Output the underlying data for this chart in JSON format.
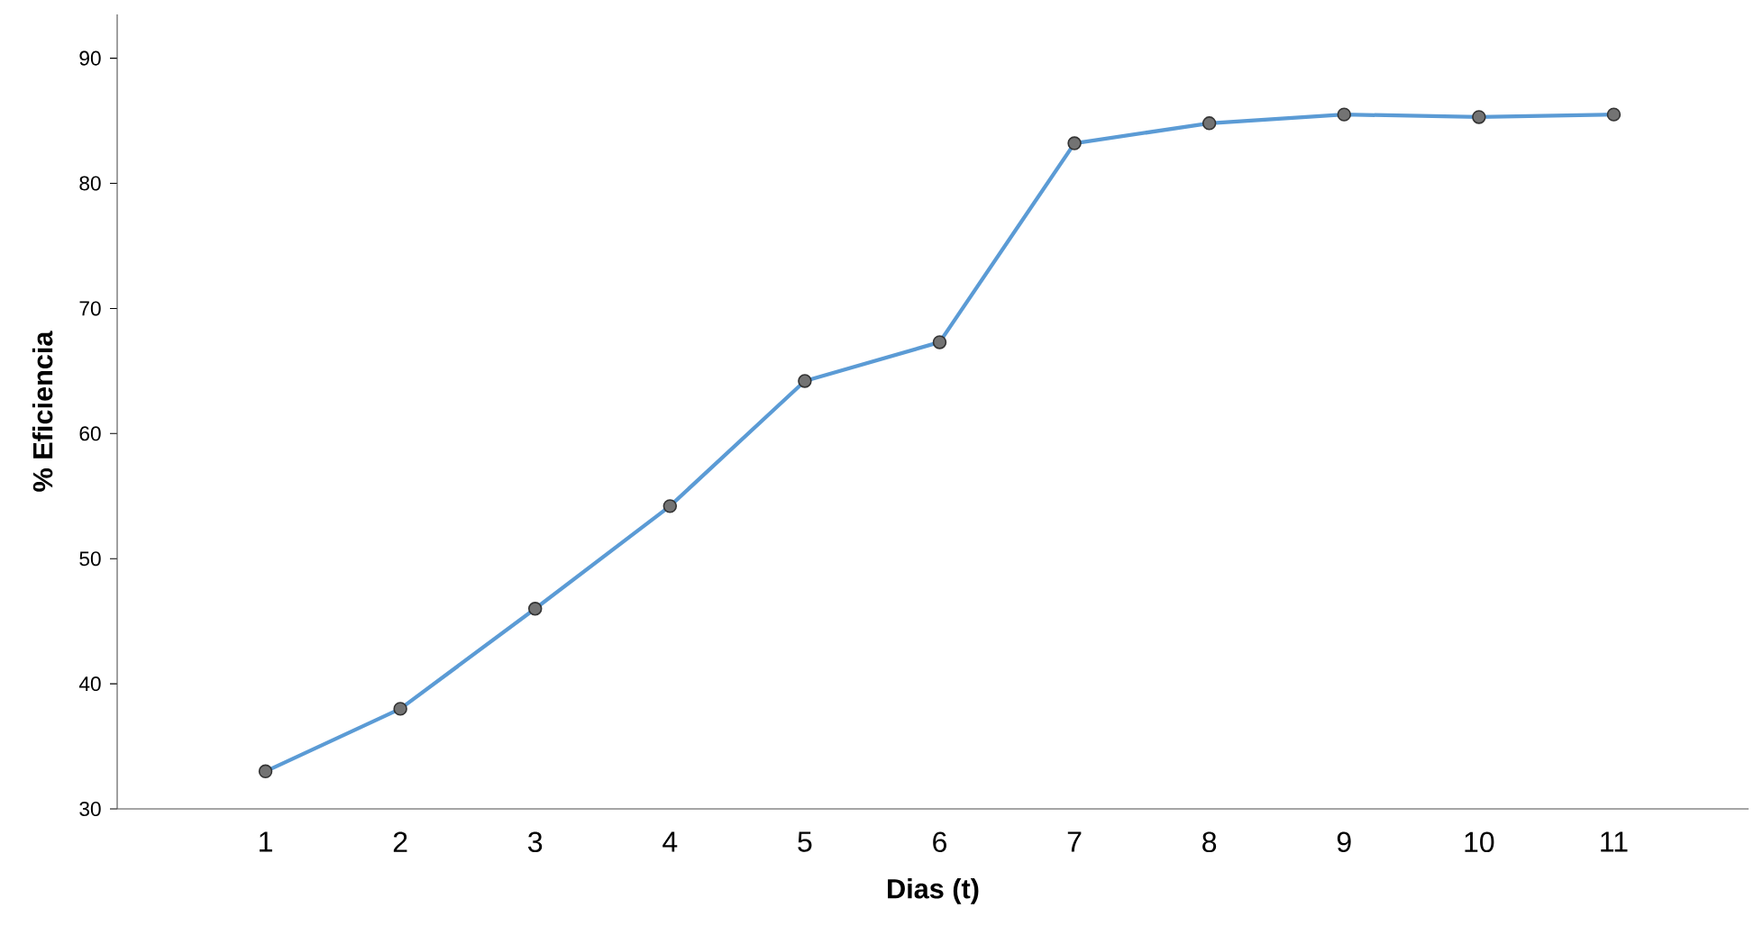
{
  "chart_data": {
    "type": "line",
    "xlabel": "Dias (t)",
    "ylabel": "% Eficiencia",
    "categories": [
      "1",
      "2",
      "3",
      "4",
      "5",
      "6",
      "7",
      "8",
      "9",
      "10",
      "11"
    ],
    "series": [
      {
        "color": "#5b9bd5",
        "values": [
          33.0,
          38.0,
          46.0,
          54.2,
          64.2,
          67.3,
          83.2,
          84.8,
          85.5,
          85.3,
          85.5
        ]
      }
    ],
    "ylim": [
      30,
      93.5
    ],
    "yticks": [
      30,
      40,
      50,
      60,
      70,
      80,
      90
    ],
    "marker": "circle",
    "line_style": "solid"
  }
}
